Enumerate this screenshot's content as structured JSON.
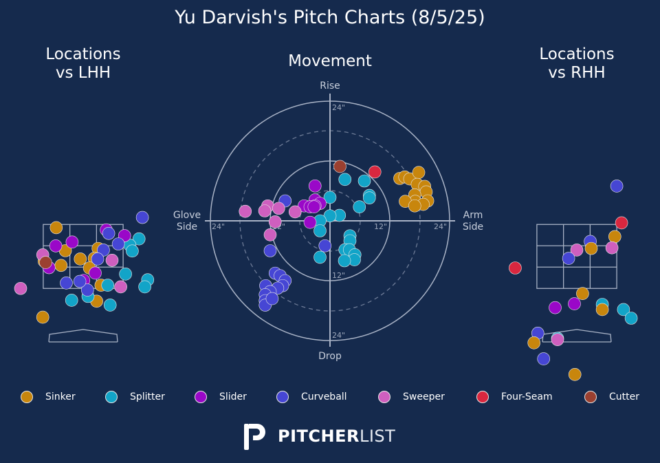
{
  "title": "Yu Darvish's Pitch Charts (8/5/25)",
  "panels": {
    "lhh_title_line1": "Locations",
    "lhh_title_line2": "vs LHH",
    "movement_title": "Movement",
    "rhh_title_line1": "Locations",
    "rhh_title_line2": "vs RHH"
  },
  "movement_labels": {
    "top": "Rise",
    "bottom": "Drop",
    "left_line1": "Glove",
    "left_line2": "Side",
    "right_line1": "Arm",
    "right_line2": "Side",
    "ring_12_top": "12\"",
    "ring_24_top": "24\"",
    "ring_12_right": "12\"",
    "ring_24_right": "24\"",
    "ring_12_bottom": "12\"",
    "ring_24_bottom": "24\"",
    "ring_12_left": "12\"",
    "ring_24_left": "24\""
  },
  "legend": [
    {
      "name": "Sinker",
      "color": "#c8860d"
    },
    {
      "name": "Splitter",
      "color": "#12a4c8"
    },
    {
      "name": "Slider",
      "color": "#9a08c8"
    },
    {
      "name": "Curveball",
      "color": "#4646d4"
    },
    {
      "name": "Sweeper",
      "color": "#cf5fbf"
    },
    {
      "name": "Four-Seam",
      "color": "#d9273f"
    },
    {
      "name": "Cutter",
      "color": "#9b4030"
    }
  ],
  "logo": {
    "bold": "PITCHER",
    "light": "LIST"
  },
  "chart_data": [
    {
      "type": "scatter",
      "name": "Locations vs LHH",
      "zone": {
        "x": [
          -0.83,
          0.83
        ],
        "z": [
          1.5,
          3.5
        ]
      },
      "xlim": [
        -1.25,
        1.25
      ],
      "zlim": [
        -0.25,
        5.6
      ],
      "points": [
        {
          "pitch": "Sinker",
          "x": -0.56,
          "z": 3.4
        },
        {
          "pitch": "Sinker",
          "x": -0.37,
          "z": 2.68
        },
        {
          "pitch": "Sinker",
          "x": 0.31,
          "z": 2.75
        },
        {
          "pitch": "Sinker",
          "x": -0.06,
          "z": 2.42
        },
        {
          "pitch": "Sinker",
          "x": 0.23,
          "z": 2.44
        },
        {
          "pitch": "Sinker",
          "x": -0.46,
          "z": 2.22
        },
        {
          "pitch": "Sinker",
          "x": 0.13,
          "z": 2.14
        },
        {
          "pitch": "Sinker",
          "x": -0.81,
          "z": 2.35
        },
        {
          "pitch": "Sinker",
          "x": 0.37,
          "z": 1.6
        },
        {
          "pitch": "Sinker",
          "x": 0.28,
          "z": 1.1
        },
        {
          "pitch": "Sinker",
          "x": -0.84,
          "z": 0.6
        },
        {
          "pitch": "Splitter",
          "x": 1.16,
          "z": 3.05
        },
        {
          "pitch": "Splitter",
          "x": 0.97,
          "z": 2.85
        },
        {
          "pitch": "Splitter",
          "x": 1.02,
          "z": 2.67
        },
        {
          "pitch": "Splitter",
          "x": 0.88,
          "z": 1.95
        },
        {
          "pitch": "Splitter",
          "x": 1.34,
          "z": 1.77
        },
        {
          "pitch": "Splitter",
          "x": 1.28,
          "z": 1.55
        },
        {
          "pitch": "Splitter",
          "x": 0.51,
          "z": 1.6
        },
        {
          "pitch": "Splitter",
          "x": 0.1,
          "z": 1.25
        },
        {
          "pitch": "Splitter",
          "x": -0.24,
          "z": 1.13
        },
        {
          "pitch": "Splitter",
          "x": 0.56,
          "z": 0.98
        },
        {
          "pitch": "Slider",
          "x": 0.48,
          "z": 3.33
        },
        {
          "pitch": "Slider",
          "x": 0.86,
          "z": 3.15
        },
        {
          "pitch": "Slider",
          "x": -0.23,
          "z": 2.95
        },
        {
          "pitch": "Slider",
          "x": -0.57,
          "z": 2.83
        },
        {
          "pitch": "Slider",
          "x": -0.71,
          "z": 2.15
        },
        {
          "pitch": "Slider",
          "x": 0.25,
          "z": 1.98
        },
        {
          "pitch": "Slider",
          "x": 0.01,
          "z": 1.75
        },
        {
          "pitch": "Curveball",
          "x": 1.23,
          "z": 3.72
        },
        {
          "pitch": "Curveball",
          "x": 0.53,
          "z": 3.22
        },
        {
          "pitch": "Curveball",
          "x": 0.73,
          "z": 2.89
        },
        {
          "pitch": "Curveball",
          "x": 0.42,
          "z": 2.7
        },
        {
          "pitch": "Curveball",
          "x": 0.3,
          "z": 2.42
        },
        {
          "pitch": "Curveball",
          "x": -0.35,
          "z": 1.67
        },
        {
          "pitch": "Curveball",
          "x": 0.09,
          "z": 1.45
        },
        {
          "pitch": "Curveball",
          "x": -0.07,
          "z": 1.72
        },
        {
          "pitch": "Sweeper",
          "x": -0.84,
          "z": 2.55
        },
        {
          "pitch": "Sweeper",
          "x": 0.6,
          "z": 2.38
        },
        {
          "pitch": "Sweeper",
          "x": 0.78,
          "z": 1.55
        },
        {
          "pitch": "Sweeper",
          "x": -1.3,
          "z": 1.5
        },
        {
          "pitch": "Cutter",
          "x": -0.78,
          "z": 2.31
        }
      ]
    },
    {
      "type": "scatter",
      "name": "Movement",
      "xlabel": "Glove Side / Arm Side",
      "ylabel": "Drop / Rise",
      "rings": [
        12,
        24
      ],
      "xlim": [
        -24,
        24
      ],
      "ylim": [
        -24,
        24
      ],
      "points": [
        {
          "pitch": "Sinker",
          "x": 14.0,
          "y": 8.5
        },
        {
          "pitch": "Sinker",
          "x": 15.0,
          "y": 8.8
        },
        {
          "pitch": "Sinker",
          "x": 16.0,
          "y": 8.4
        },
        {
          "pitch": "Sinker",
          "x": 17.8,
          "y": 9.7
        },
        {
          "pitch": "Sinker",
          "x": 17.5,
          "y": 7.3
        },
        {
          "pitch": "Sinker",
          "x": 19.0,
          "y": 6.9
        },
        {
          "pitch": "Sinker",
          "x": 19.3,
          "y": 5.8
        },
        {
          "pitch": "Sinker",
          "x": 17.0,
          "y": 5.2
        },
        {
          "pitch": "Sinker",
          "x": 17.1,
          "y": 3.9
        },
        {
          "pitch": "Sinker",
          "x": 15.1,
          "y": 3.9
        },
        {
          "pitch": "Sinker",
          "x": 19.6,
          "y": 4.0
        },
        {
          "pitch": "Sinker",
          "x": 18.7,
          "y": 3.3
        },
        {
          "pitch": "Sinker",
          "x": 17.0,
          "y": 3.0
        },
        {
          "pitch": "Splitter",
          "x": 3.0,
          "y": 8.3
        },
        {
          "pitch": "Splitter",
          "x": 6.9,
          "y": 8.0
        },
        {
          "pitch": "Splitter",
          "x": 7.9,
          "y": 5.1
        },
        {
          "pitch": "Splitter",
          "x": 7.9,
          "y": 4.6
        },
        {
          "pitch": "Splitter",
          "x": 5.9,
          "y": 2.8
        },
        {
          "pitch": "Splitter",
          "x": 1.9,
          "y": 1.1
        },
        {
          "pitch": "Splitter",
          "x": 0.0,
          "y": 1.0
        },
        {
          "pitch": "Splitter",
          "x": 0.0,
          "y": 4.7
        },
        {
          "pitch": "Splitter",
          "x": -2.0,
          "y": 0.0
        },
        {
          "pitch": "Splitter",
          "x": -2.0,
          "y": -2.0
        },
        {
          "pitch": "Splitter",
          "x": 4.0,
          "y": -3.0
        },
        {
          "pitch": "Splitter",
          "x": 4.0,
          "y": -4.0
        },
        {
          "pitch": "Splitter",
          "x": 3.0,
          "y": -5.8
        },
        {
          "pitch": "Splitter",
          "x": 3.9,
          "y": -5.8
        },
        {
          "pitch": "Splitter",
          "x": 5.0,
          "y": -6.8
        },
        {
          "pitch": "Splitter",
          "x": 4.9,
          "y": -7.8
        },
        {
          "pitch": "Splitter",
          "x": 2.9,
          "y": -8.0
        },
        {
          "pitch": "Splitter",
          "x": -2.0,
          "y": -7.3
        },
        {
          "pitch": "Slider",
          "x": -3.0,
          "y": 7.0
        },
        {
          "pitch": "Slider",
          "x": -3.0,
          "y": 4.2
        },
        {
          "pitch": "Slider",
          "x": -2.0,
          "y": 3.5
        },
        {
          "pitch": "Slider",
          "x": -3.0,
          "y": 3.0
        },
        {
          "pitch": "Slider",
          "x": -5.2,
          "y": 3.0
        },
        {
          "pitch": "Slider",
          "x": -4.0,
          "y": 2.8
        },
        {
          "pitch": "Slider",
          "x": -3.2,
          "y": 2.8
        },
        {
          "pitch": "Slider",
          "x": -4.0,
          "y": -0.3
        },
        {
          "pitch": "Curveball",
          "x": -9.0,
          "y": 4.0
        },
        {
          "pitch": "Curveball",
          "x": -1.0,
          "y": -5.0
        },
        {
          "pitch": "Curveball",
          "x": -12.0,
          "y": -6.0
        },
        {
          "pitch": "Curveball",
          "x": -11.0,
          "y": -10.5
        },
        {
          "pitch": "Curveball",
          "x": -10.0,
          "y": -11.0
        },
        {
          "pitch": "Curveball",
          "x": -9.0,
          "y": -12.0
        },
        {
          "pitch": "Curveball",
          "x": -9.5,
          "y": -13.0
        },
        {
          "pitch": "Curveball",
          "x": -10.5,
          "y": -13.5
        },
        {
          "pitch": "Curveball",
          "x": -12.9,
          "y": -13.0
        },
        {
          "pitch": "Curveball",
          "x": -12.0,
          "y": -14.2
        },
        {
          "pitch": "Curveball",
          "x": -13.0,
          "y": -14.8
        },
        {
          "pitch": "Curveball",
          "x": -13.0,
          "y": -16.0
        },
        {
          "pitch": "Curveball",
          "x": -13.0,
          "y": -16.9
        },
        {
          "pitch": "Curveball",
          "x": -11.6,
          "y": -15.6
        },
        {
          "pitch": "Sweeper",
          "x": -17.0,
          "y": 1.9
        },
        {
          "pitch": "Sweeper",
          "x": -12.5,
          "y": 3.0
        },
        {
          "pitch": "Sweeper",
          "x": -13.1,
          "y": 2.0
        },
        {
          "pitch": "Sweeper",
          "x": -10.3,
          "y": 2.5
        },
        {
          "pitch": "Sweeper",
          "x": -7.0,
          "y": 1.8
        },
        {
          "pitch": "Sweeper",
          "x": -11.0,
          "y": -0.2
        },
        {
          "pitch": "Sweeper",
          "x": -12.0,
          "y": -2.8
        },
        {
          "pitch": "Four-Seam",
          "x": 9.0,
          "y": 9.8
        },
        {
          "pitch": "Cutter",
          "x": 2.0,
          "y": 10.9
        }
      ]
    },
    {
      "type": "scatter",
      "name": "Locations vs RHH",
      "zone": {
        "x": [
          -0.83,
          0.83
        ],
        "z": [
          1.5,
          3.5
        ]
      },
      "xlim": [
        -1.25,
        1.25
      ],
      "zlim": [
        -0.25,
        5.6
      ],
      "points": [
        {
          "pitch": "Curveball",
          "x": 0.83,
          "z": 4.7
        },
        {
          "pitch": "Four-Seam",
          "x": 0.93,
          "z": 3.55
        },
        {
          "pitch": "Sinker",
          "x": 0.79,
          "z": 3.12
        },
        {
          "pitch": "Curveball",
          "x": 0.28,
          "z": 2.97
        },
        {
          "pitch": "Sinker",
          "x": 0.3,
          "z": 2.75
        },
        {
          "pitch": "Sweeper",
          "x": 0.0,
          "z": 2.7
        },
        {
          "pitch": "Sweeper",
          "x": 0.73,
          "z": 2.77
        },
        {
          "pitch": "Curveball",
          "x": -0.17,
          "z": 2.44
        },
        {
          "pitch": "Four-Seam",
          "x": -1.28,
          "z": 2.14
        },
        {
          "pitch": "Sinker",
          "x": 0.12,
          "z": 1.34
        },
        {
          "pitch": "Slider",
          "x": -0.05,
          "z": 1.02
        },
        {
          "pitch": "Slider",
          "x": -0.45,
          "z": 0.9
        },
        {
          "pitch": "Splitter",
          "x": 0.53,
          "z": 1.0
        },
        {
          "pitch": "Sinker",
          "x": 0.53,
          "z": 0.84
        },
        {
          "pitch": "Splitter",
          "x": 0.97,
          "z": 0.84
        },
        {
          "pitch": "Splitter",
          "x": 1.13,
          "z": 0.57
        },
        {
          "pitch": "Curveball",
          "x": -0.81,
          "z": 0.1
        },
        {
          "pitch": "Sinker",
          "x": -0.89,
          "z": -0.2
        },
        {
          "pitch": "Splitter",
          "x": -0.4,
          "z": -0.06
        },
        {
          "pitch": "Sweeper",
          "x": -0.4,
          "z": -0.1
        },
        {
          "pitch": "Curveball",
          "x": -0.69,
          "z": -0.7
        },
        {
          "pitch": "Sinker",
          "x": -0.04,
          "z": -1.19
        }
      ]
    }
  ]
}
